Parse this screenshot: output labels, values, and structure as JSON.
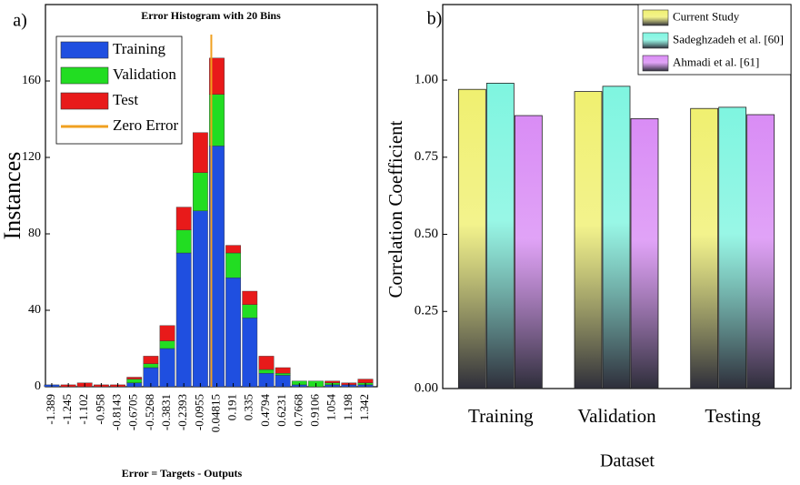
{
  "chart_data": [
    {
      "type": "bar",
      "stacked": true,
      "panel_label": "a)",
      "title": "Error Histogram with 20 Bins",
      "xlabel": "Error = Targets - Outputs",
      "ylabel": "Instances",
      "x": [
        -1.389,
        -1.245,
        -1.102,
        -0.958,
        -0.8143,
        -0.6705,
        -0.5268,
        -0.3831,
        -0.2393,
        -0.0955,
        0.04815,
        0.191,
        0.335,
        0.4794,
        0.6231,
        0.7668,
        0.9106,
        1.054,
        1.198,
        1.342
      ],
      "xlim": [
        -1.444,
        1.445
      ],
      "ylim": [
        0,
        200
      ],
      "yticks": [
        0,
        40,
        80,
        120,
        160
      ],
      "legend": "upper left",
      "series": [
        {
          "name": "Training",
          "color": "#1f4fe0",
          "values": [
            1,
            0,
            0,
            0,
            0,
            2,
            10,
            20,
            70,
            92,
            126,
            57,
            36,
            7,
            6,
            1,
            0,
            1,
            1,
            1
          ]
        },
        {
          "name": "Validation",
          "color": "#22dd22",
          "values": [
            0,
            0,
            0,
            0,
            0,
            2,
            2,
            4,
            12,
            20,
            27,
            13,
            7,
            2,
            1,
            2,
            3,
            1,
            0,
            1
          ]
        },
        {
          "name": "Test",
          "color": "#e81a1a",
          "values": [
            0,
            1,
            2,
            1,
            1,
            1,
            4,
            8,
            12,
            21,
            19,
            4,
            7,
            7,
            3,
            0,
            0,
            1,
            1,
            2
          ]
        }
      ],
      "reference_line": {
        "name": "Zero Error",
        "value": 0,
        "color": "#f0a020"
      }
    },
    {
      "type": "bar",
      "stacked": false,
      "panel_label": "b)",
      "xlabel": "Dataset",
      "ylabel": "Correlation Coefficient",
      "categories": [
        "Training",
        "Validation",
        "Testing"
      ],
      "ylim": [
        0,
        1.245
      ],
      "yticks": [
        {
          "value": 0,
          "label": "0.00"
        },
        {
          "value": 0.25,
          "label": "0.25"
        },
        {
          "value": 0.5,
          "label": "0.50"
        },
        {
          "value": 0.75,
          "label": "0.75"
        },
        {
          "value": 1,
          "label": "1.00"
        }
      ],
      "legend": "upper right",
      "series": [
        {
          "name": "Current Study",
          "color": "#f0f070",
          "values": [
            0.97,
            0.963,
            0.908
          ]
        },
        {
          "name": "Sadeghzadeh et al. [60]",
          "color": "#7ff5e0",
          "values": [
            0.99,
            0.98,
            0.912
          ]
        },
        {
          "name": "Ahmadi et al. [61]",
          "color": "#d98cf5",
          "values": [
            0.885,
            0.875,
            0.888
          ]
        }
      ]
    }
  ]
}
